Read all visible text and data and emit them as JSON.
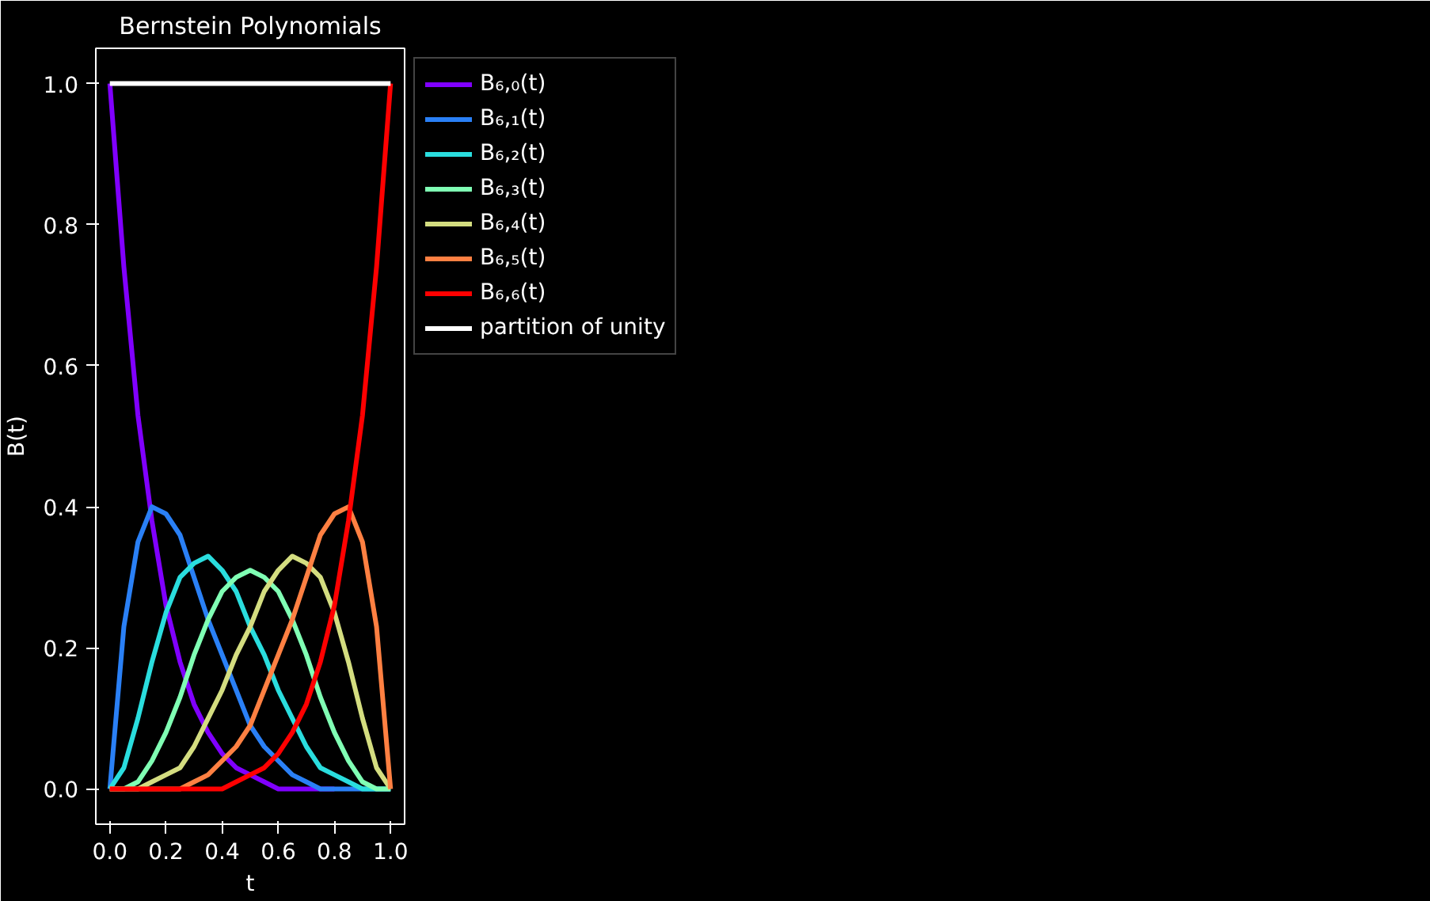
{
  "chart_data": {
    "type": "line",
    "title": "Bernstein Polynomials",
    "xlabel": "t",
    "ylabel": "B(t)",
    "x": [
      0,
      0.05,
      0.1,
      0.15,
      0.2,
      0.25,
      0.3,
      0.35,
      0.4,
      0.45,
      0.5,
      0.55,
      0.6,
      0.65,
      0.7,
      0.75,
      0.8,
      0.85,
      0.9,
      0.95,
      1
    ],
    "series": [
      {
        "name": "B₆,₀(t)",
        "color": "#8000ff",
        "values": [
          1,
          0.74,
          0.53,
          0.38,
          0.26,
          0.18,
          0.12,
          0.08,
          0.05,
          0.03,
          0.02,
          0.01,
          0,
          0,
          0,
          0,
          0,
          null,
          null,
          null,
          null
        ]
      },
      {
        "name": "B₆,₁(t)",
        "color": "#2a80f6",
        "values": [
          0,
          0.23,
          0.35,
          0.4,
          0.39,
          0.36,
          0.3,
          0.24,
          0.19,
          0.14,
          0.09,
          0.06,
          0.04,
          0.02,
          0.01,
          0,
          0,
          0,
          0,
          0,
          0
        ]
      },
      {
        "name": "B₆,₂(t)",
        "color": "#2addde",
        "values": [
          0,
          0.03,
          0.1,
          0.18,
          0.25,
          0.3,
          0.32,
          0.33,
          0.31,
          0.28,
          0.23,
          0.19,
          0.14,
          0.1,
          0.06,
          0.03,
          0.02,
          0.01,
          0,
          0,
          0
        ]
      },
      {
        "name": "B₆,₃(t)",
        "color": "#80ffb4",
        "values": [
          0,
          0,
          0.01,
          0.04,
          0.08,
          0.13,
          0.19,
          0.24,
          0.28,
          0.3,
          0.31,
          0.3,
          0.28,
          0.24,
          0.19,
          0.13,
          0.08,
          0.04,
          0.01,
          0,
          0
        ]
      },
      {
        "name": "B₆,₄(t)",
        "color": "#d4dd80",
        "values": [
          0,
          0,
          0,
          0.01,
          0.02,
          0.03,
          0.06,
          0.1,
          0.14,
          0.19,
          0.23,
          0.28,
          0.31,
          0.33,
          0.32,
          0.3,
          0.25,
          0.18,
          0.1,
          0.03,
          0
        ]
      },
      {
        "name": "B₆,₅(t)",
        "color": "#ff8042",
        "values": [
          0,
          0,
          0,
          0,
          0,
          0,
          0.01,
          0.02,
          0.04,
          0.06,
          0.09,
          0.14,
          0.19,
          0.24,
          0.3,
          0.36,
          0.39,
          0.4,
          0.35,
          0.23,
          0
        ]
      },
      {
        "name": "B₆,₆(t)",
        "color": "#ff0000",
        "values": [
          0,
          0,
          0,
          0,
          0,
          0,
          0,
          0,
          0,
          0.01,
          0.02,
          0.03,
          0.05,
          0.08,
          0.12,
          0.18,
          0.26,
          0.38,
          0.53,
          0.74,
          1
        ]
      },
      {
        "name": "partition of unity",
        "color": "#ffffff",
        "values": [
          1,
          1,
          1,
          1,
          1,
          1,
          1,
          1,
          1,
          1,
          1,
          1,
          1,
          1,
          1,
          1,
          1,
          1,
          1,
          1,
          1
        ]
      }
    ],
    "xlim": [
      -0.05,
      1.05
    ],
    "ylim": [
      -0.05,
      1.05
    ],
    "xticks": [
      {
        "value": 0,
        "label": "0.0"
      },
      0.2,
      0.4,
      0.6,
      0.8,
      {
        "value": 1,
        "label": "1.0"
      }
    ],
    "yticks": [
      {
        "value": 0,
        "label": "0.0"
      },
      0.2,
      0.4,
      0.6,
      0.8,
      {
        "value": 1,
        "label": "1.0"
      }
    ],
    "legend": "right"
  }
}
